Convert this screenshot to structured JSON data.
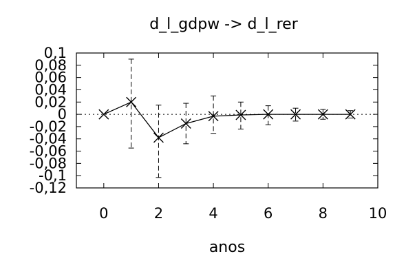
{
  "chart_data": {
    "type": "line",
    "title": "d_l_gdpw -> d_l_rer",
    "xlabel": "anos",
    "ylabel": "",
    "xlim": [
      -1,
      10
    ],
    "ylim": [
      -0.12,
      0.1
    ],
    "xticks": [
      0,
      2,
      4,
      6,
      8,
      10
    ],
    "xtick_labels": [
      "0",
      "2",
      "4",
      "6",
      "8",
      "10"
    ],
    "yticks": [
      0.1,
      0.08,
      0.06,
      0.04,
      0.02,
      0,
      -0.02,
      -0.04,
      -0.06,
      -0.08,
      -0.1,
      -0.12
    ],
    "ytick_labels": [
      "0,1",
      "0,08",
      "0,06",
      "0,04",
      "0,02",
      "0",
      "-0,02",
      "-0,04",
      "-0,06",
      "-0,08",
      "-0,1",
      "-0,12"
    ],
    "zero_line": true,
    "grid": false,
    "series": [
      {
        "x": [
          0,
          1,
          2,
          3,
          4,
          5,
          6,
          7,
          8,
          9
        ],
        "values": [
          0,
          0.02,
          -0.038,
          -0.015,
          -0.003,
          -0.001,
          0,
          0,
          0,
          0
        ],
        "lower": [
          0,
          -0.055,
          -0.103,
          -0.048,
          -0.031,
          -0.024,
          -0.017,
          -0.011,
          -0.008,
          -0.006
        ],
        "upper": [
          0,
          0.09,
          0.015,
          0.018,
          0.03,
          0.02,
          0.014,
          0.01,
          0.008,
          0.006
        ]
      }
    ]
  }
}
